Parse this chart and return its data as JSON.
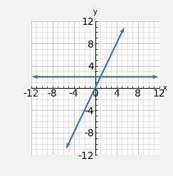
{
  "xlim": [
    -12,
    12
  ],
  "ylim": [
    -12,
    12
  ],
  "xticks": [
    -12,
    -8,
    -4,
    0,
    4,
    8,
    12
  ],
  "yticks": [
    -12,
    -8,
    -4,
    0,
    4,
    8,
    12
  ],
  "xlabel": "x",
  "ylabel": "y",
  "horizontal_line_y": 2,
  "slanted_line_slope": 2,
  "slanted_line_intercept": 0,
  "line_color": "#2e7d99",
  "background_color": "#f2f2f2",
  "plot_bg_color": "#ffffff",
  "figsize": [
    2.43,
    2.48
  ],
  "dpi": 100
}
